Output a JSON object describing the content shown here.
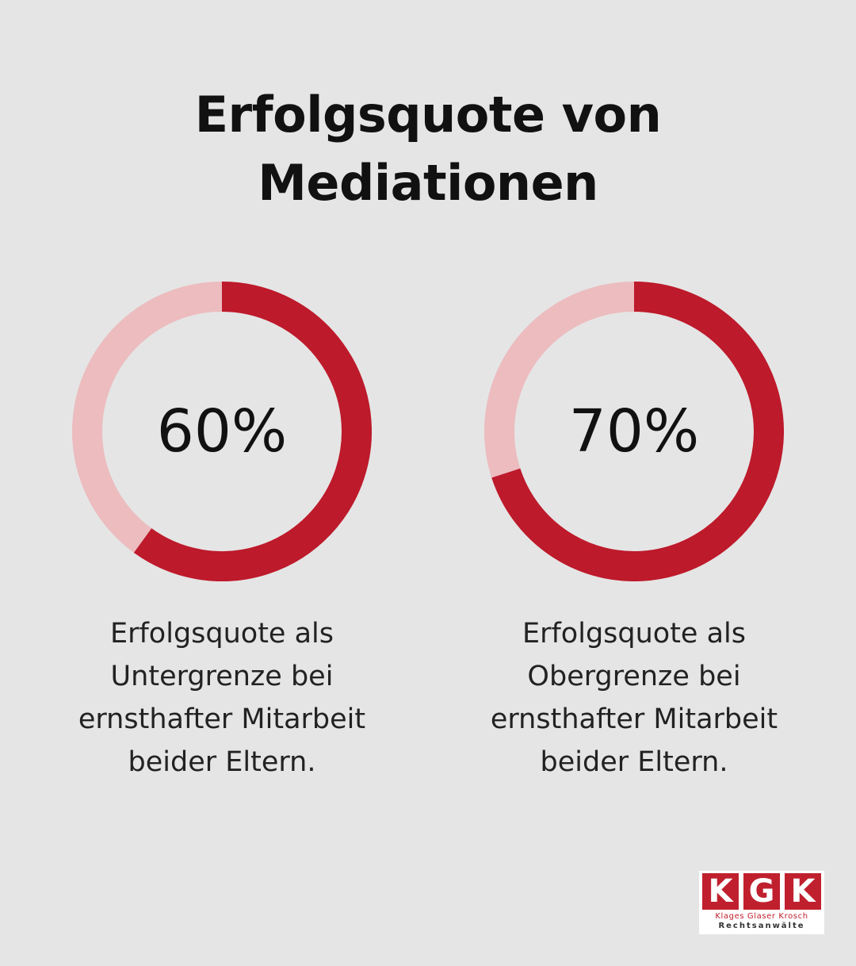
{
  "title": {
    "line1": "Erfolgsquote von",
    "line2": "Mediationen"
  },
  "colors": {
    "background": "#e5e5e5",
    "filled": "#bd1a2b",
    "remaining": "#ecbcbf",
    "brand": "#c0202e"
  },
  "chart_data": [
    {
      "type": "pie",
      "style": "donut",
      "value": 60,
      "max": 100,
      "label": "60%",
      "description": [
        "Erfolgsquote als",
        "Untergrenze bei",
        "ernsthafter Mitarbeit",
        "beider Eltern."
      ]
    },
    {
      "type": "pie",
      "style": "donut",
      "value": 70,
      "max": 100,
      "label": "70%",
      "description": [
        "Erfolgsquote als",
        "Obergrenze bei",
        "ernsthafter Mitarbeit",
        "beider Eltern."
      ]
    }
  ],
  "logo": {
    "letters": [
      "K",
      "G",
      "K"
    ],
    "names": "Klages Glaser Krosch",
    "subtitle": "Rechtsanwälte"
  }
}
